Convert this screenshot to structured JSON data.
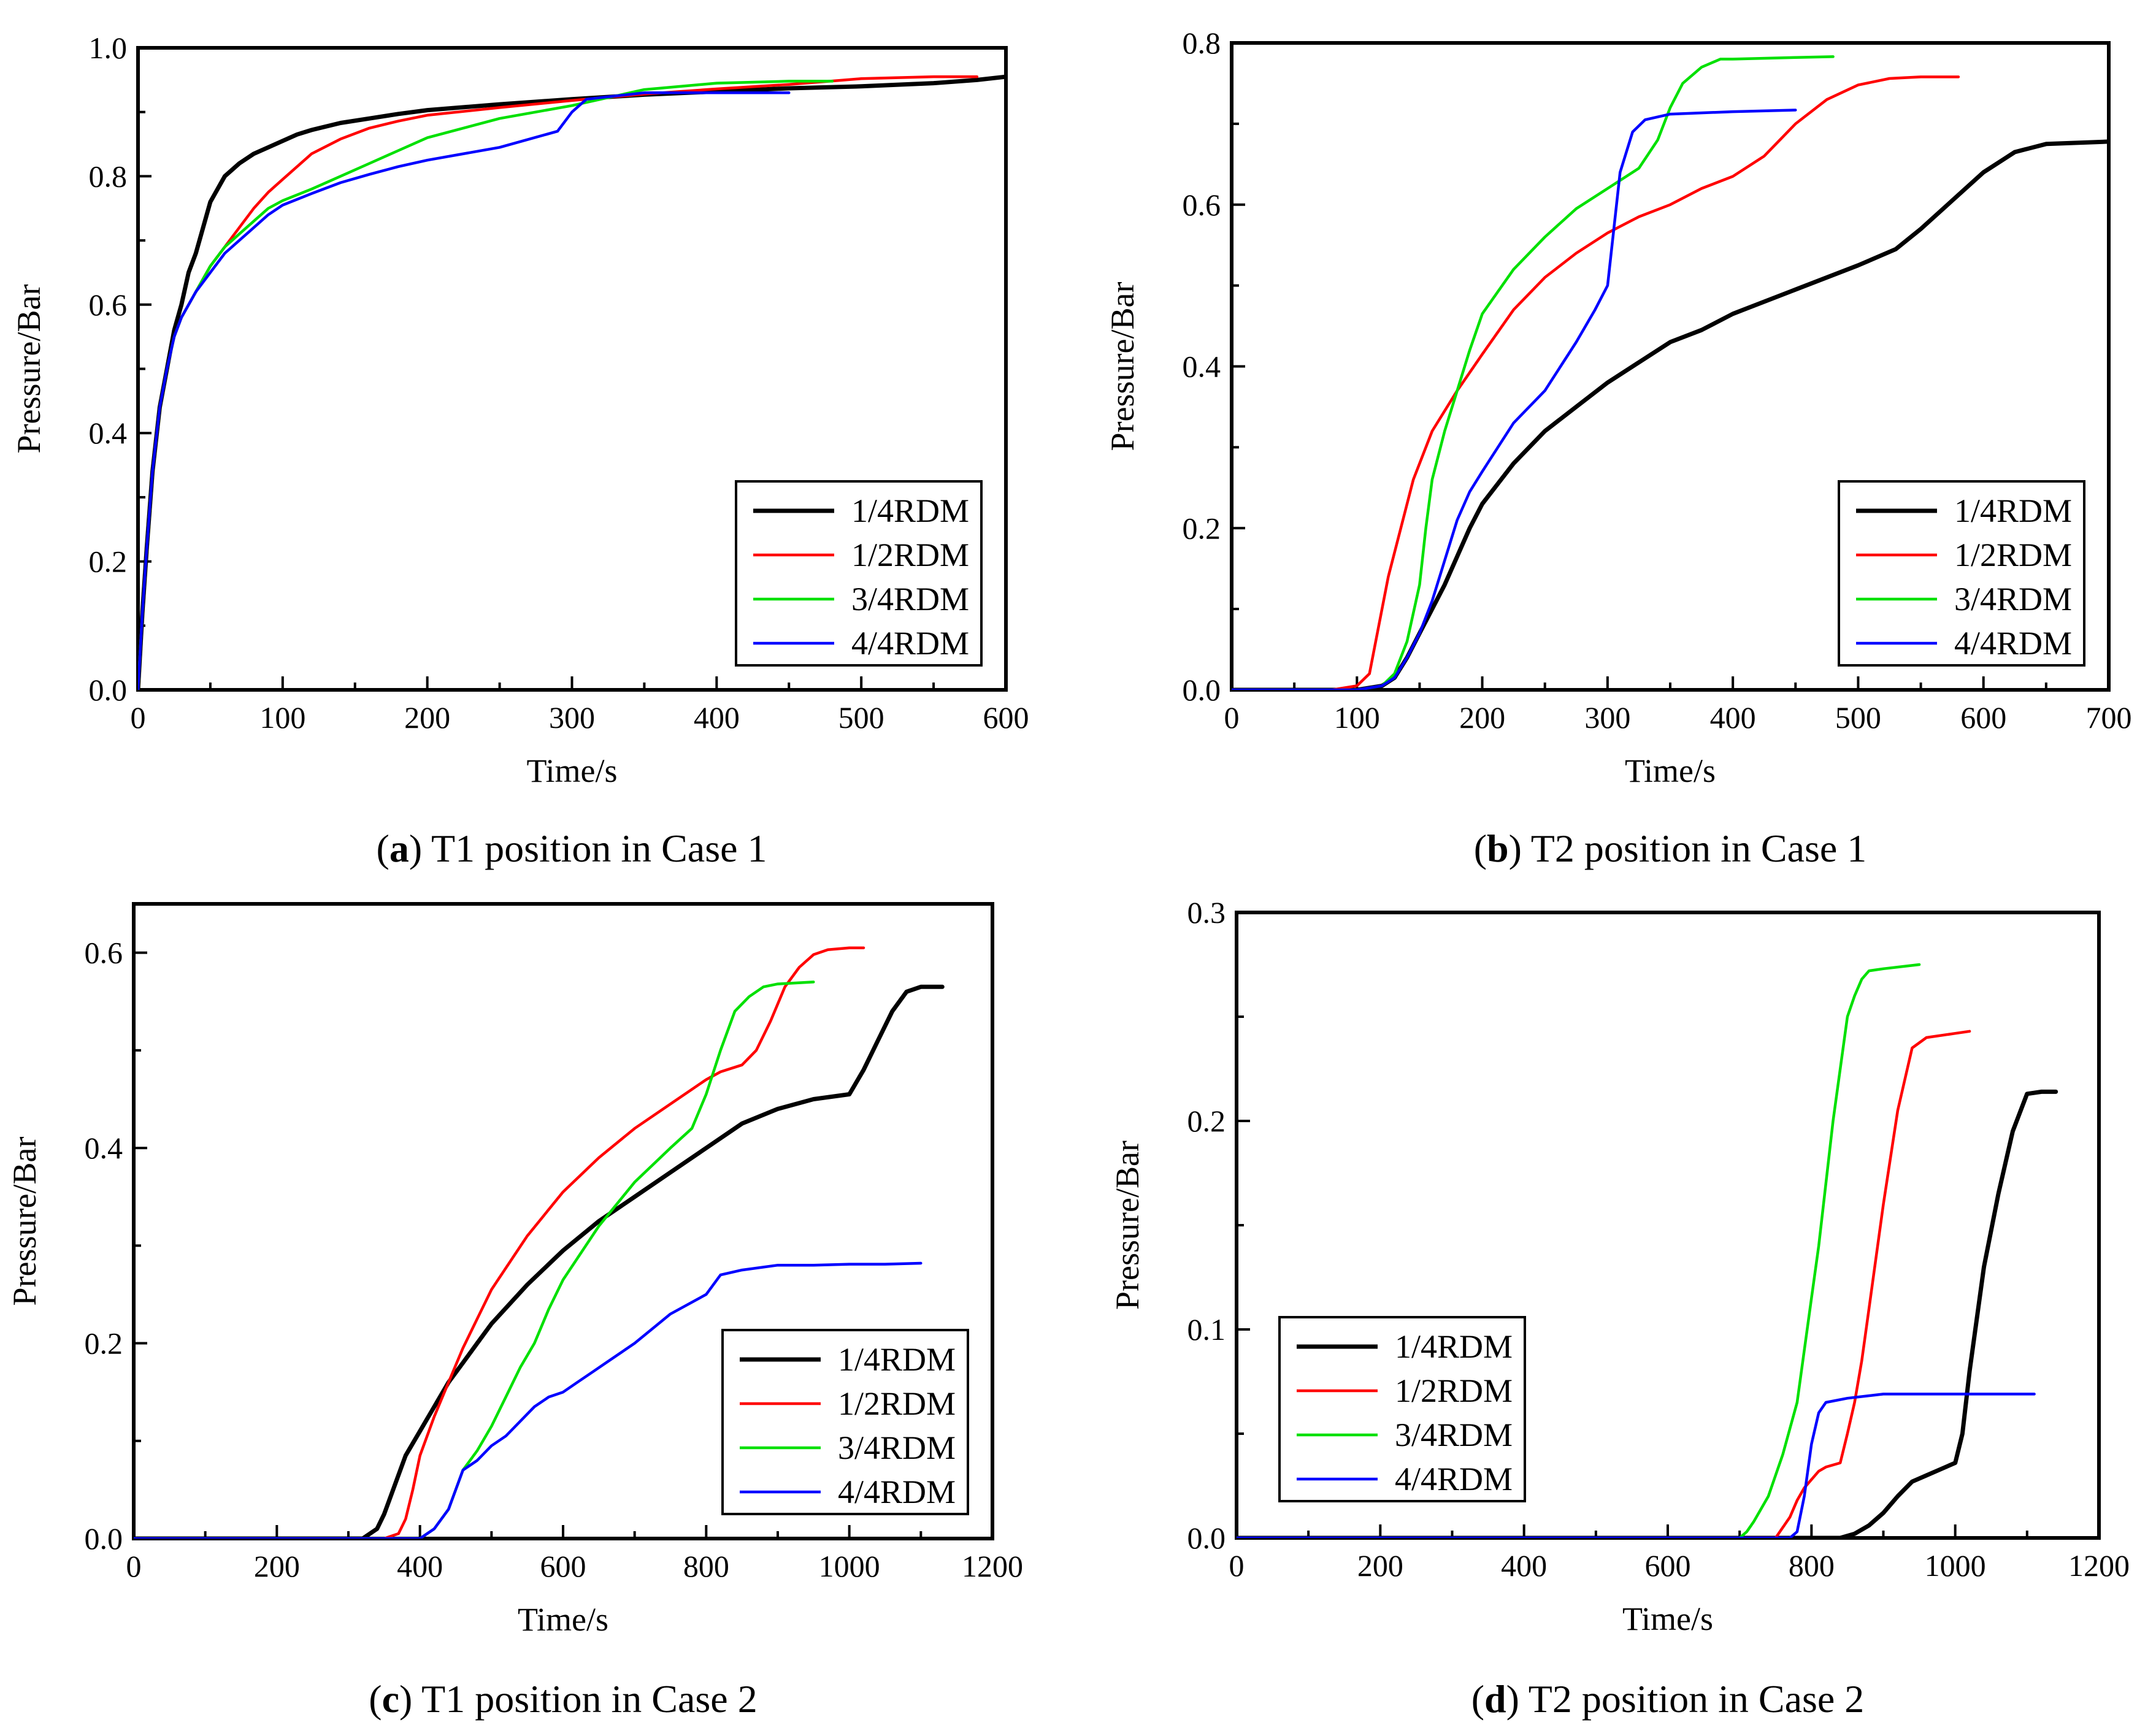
{
  "series_colors": {
    "1/4RDM": "#000000",
    "1/2RDM": "#ff0000",
    "3/4RDM": "#00e000",
    "4/4RDM": "#0000ff"
  },
  "chart_data": [
    {
      "id": "a",
      "type": "line",
      "caption_letter": "a",
      "caption_text": " T1 position in Case 1",
      "xlabel": "Time/s",
      "ylabel": "Pressure/Bar",
      "xlim": [
        0,
        600
      ],
      "ylim": [
        0,
        1.0
      ],
      "xticks": [
        0,
        100,
        200,
        300,
        400,
        500,
        600
      ],
      "xtick_labels": [
        "0",
        "100",
        "200",
        "300",
        "400",
        "500",
        "600"
      ],
      "yticks": [
        0,
        0.2,
        0.4,
        0.6,
        0.8,
        1.0
      ],
      "ytick_labels": [
        "0.0",
        "0.2",
        "0.4",
        "0.6",
        "0.8",
        "1.0"
      ],
      "legend_position": "bottom-right",
      "series": [
        {
          "name": "1/4RDM",
          "x": [
            0,
            3,
            6,
            10,
            15,
            20,
            25,
            30,
            35,
            40,
            45,
            50,
            55,
            60,
            70,
            80,
            90,
            100,
            110,
            120,
            140,
            160,
            180,
            200,
            250,
            300,
            350,
            400,
            450,
            500,
            550,
            580,
            600
          ],
          "y": [
            0,
            0.12,
            0.22,
            0.34,
            0.44,
            0.5,
            0.56,
            0.6,
            0.65,
            0.68,
            0.72,
            0.76,
            0.78,
            0.8,
            0.82,
            0.835,
            0.845,
            0.855,
            0.865,
            0.872,
            0.883,
            0.89,
            0.897,
            0.903,
            0.912,
            0.92,
            0.927,
            0.932,
            0.937,
            0.94,
            0.945,
            0.95,
            0.955
          ]
        },
        {
          "name": "1/2RDM",
          "x": [
            0,
            3,
            6,
            10,
            15,
            20,
            25,
            30,
            40,
            50,
            60,
            70,
            80,
            90,
            100,
            110,
            120,
            140,
            160,
            180,
            200,
            250,
            300,
            350,
            400,
            450,
            500,
            550,
            580
          ],
          "y": [
            0,
            0.12,
            0.22,
            0.34,
            0.44,
            0.5,
            0.55,
            0.58,
            0.62,
            0.66,
            0.69,
            0.72,
            0.75,
            0.775,
            0.795,
            0.815,
            0.835,
            0.858,
            0.875,
            0.886,
            0.895,
            0.907,
            0.918,
            0.928,
            0.936,
            0.943,
            0.952,
            0.955,
            0.955
          ]
        },
        {
          "name": "3/4RDM",
          "x": [
            0,
            3,
            6,
            10,
            15,
            20,
            25,
            30,
            40,
            50,
            60,
            70,
            80,
            90,
            100,
            120,
            140,
            160,
            180,
            200,
            250,
            300,
            350,
            400,
            450,
            480
          ],
          "y": [
            0,
            0.12,
            0.22,
            0.34,
            0.44,
            0.5,
            0.55,
            0.58,
            0.62,
            0.66,
            0.69,
            0.71,
            0.73,
            0.75,
            0.762,
            0.78,
            0.8,
            0.82,
            0.84,
            0.86,
            0.89,
            0.91,
            0.935,
            0.945,
            0.948,
            0.948
          ]
        },
        {
          "name": "4/4RDM",
          "x": [
            0,
            3,
            6,
            10,
            15,
            20,
            25,
            30,
            40,
            50,
            60,
            70,
            80,
            90,
            100,
            120,
            140,
            160,
            180,
            200,
            250,
            290,
            300,
            310,
            350,
            400,
            450
          ],
          "y": [
            0,
            0.12,
            0.22,
            0.34,
            0.44,
            0.5,
            0.55,
            0.58,
            0.62,
            0.65,
            0.68,
            0.7,
            0.72,
            0.74,
            0.755,
            0.773,
            0.79,
            0.803,
            0.815,
            0.825,
            0.845,
            0.87,
            0.9,
            0.92,
            0.93,
            0.93,
            0.93
          ]
        }
      ]
    },
    {
      "id": "b",
      "type": "line",
      "caption_letter": "b",
      "caption_text": " T2 position in Case 1",
      "xlabel": "Time/s",
      "ylabel": "Pressure/Bar",
      "xlim": [
        0,
        700
      ],
      "ylim": [
        0,
        0.8
      ],
      "xticks": [
        0,
        100,
        200,
        300,
        400,
        500,
        600,
        700
      ],
      "xtick_labels": [
        "0",
        "100",
        "200",
        "300",
        "400",
        "500",
        "600",
        "700"
      ],
      "yticks": [
        0,
        0.2,
        0.4,
        0.6,
        0.8
      ],
      "ytick_labels": [
        "0.0",
        "0.2",
        "0.4",
        "0.6",
        "0.8"
      ],
      "legend_position": "bottom-right",
      "series": [
        {
          "name": "1/4RDM",
          "x": [
            0,
            100,
            120,
            130,
            140,
            150,
            160,
            170,
            180,
            190,
            200,
            225,
            250,
            275,
            300,
            325,
            350,
            375,
            400,
            450,
            500,
            530,
            550,
            575,
            600,
            625,
            650,
            700
          ],
          "y": [
            0,
            0,
            0.005,
            0.015,
            0.04,
            0.07,
            0.1,
            0.13,
            0.165,
            0.2,
            0.23,
            0.28,
            0.32,
            0.35,
            0.38,
            0.405,
            0.43,
            0.445,
            0.465,
            0.495,
            0.525,
            0.545,
            0.57,
            0.605,
            0.64,
            0.665,
            0.675,
            0.678
          ]
        },
        {
          "name": "1/2RDM",
          "x": [
            0,
            80,
            100,
            110,
            115,
            125,
            135,
            145,
            160,
            180,
            200,
            225,
            250,
            275,
            300,
            325,
            350,
            375,
            400,
            425,
            450,
            475,
            500,
            525,
            550,
            580
          ],
          "y": [
            0,
            0,
            0.005,
            0.02,
            0.06,
            0.14,
            0.2,
            0.26,
            0.32,
            0.37,
            0.415,
            0.47,
            0.51,
            0.54,
            0.565,
            0.585,
            0.6,
            0.62,
            0.635,
            0.66,
            0.7,
            0.73,
            0.748,
            0.756,
            0.758,
            0.758
          ]
        },
        {
          "name": "3/4RDM",
          "x": [
            0,
            100,
            120,
            130,
            140,
            150,
            155,
            160,
            170,
            180,
            190,
            200,
            225,
            250,
            275,
            300,
            325,
            340,
            350,
            360,
            375,
            390,
            400,
            450,
            480
          ],
          "y": [
            0,
            0,
            0.005,
            0.02,
            0.06,
            0.13,
            0.2,
            0.26,
            0.32,
            0.37,
            0.42,
            0.465,
            0.52,
            0.56,
            0.595,
            0.62,
            0.645,
            0.68,
            0.72,
            0.75,
            0.77,
            0.78,
            0.78,
            0.782,
            0.783
          ]
        },
        {
          "name": "4/4RDM",
          "x": [
            0,
            100,
            120,
            130,
            140,
            150,
            160,
            170,
            180,
            190,
            200,
            225,
            250,
            275,
            290,
            300,
            310,
            320,
            330,
            350,
            400,
            450
          ],
          "y": [
            0,
            0,
            0.005,
            0.015,
            0.04,
            0.07,
            0.11,
            0.16,
            0.21,
            0.245,
            0.27,
            0.33,
            0.37,
            0.43,
            0.47,
            0.5,
            0.64,
            0.69,
            0.705,
            0.712,
            0.715,
            0.717
          ]
        }
      ]
    },
    {
      "id": "c",
      "type": "line",
      "caption_letter": "c",
      "caption_text": " T1 position in Case 2",
      "xlabel": "Time/s",
      "ylabel": "Pressure/Bar",
      "xlim": [
        0,
        1200
      ],
      "ylim": [
        0,
        0.65
      ],
      "xticks": [
        0,
        200,
        400,
        600,
        800,
        1000,
        1200
      ],
      "xtick_labels": [
        "0",
        "200",
        "400",
        "600",
        "800",
        "1000",
        "1200"
      ],
      "yticks": [
        0,
        0.2,
        0.4,
        0.6
      ],
      "ytick_labels": [
        "0.0",
        "0.2",
        "0.4",
        "0.6"
      ],
      "legend_position": "bottom-right",
      "series": [
        {
          "name": "1/4RDM",
          "x": [
            0,
            320,
            340,
            350,
            360,
            380,
            400,
            420,
            440,
            460,
            480,
            500,
            550,
            600,
            650,
            700,
            750,
            800,
            850,
            900,
            950,
            1000,
            1020,
            1040,
            1060,
            1080,
            1100,
            1130
          ],
          "y": [
            0,
            0,
            0.01,
            0.025,
            0.045,
            0.085,
            0.11,
            0.135,
            0.16,
            0.18,
            0.2,
            0.22,
            0.26,
            0.295,
            0.325,
            0.35,
            0.375,
            0.4,
            0.425,
            0.44,
            0.45,
            0.455,
            0.48,
            0.51,
            0.54,
            0.56,
            0.565,
            0.565
          ]
        },
        {
          "name": "1/2RDM",
          "x": [
            0,
            350,
            370,
            380,
            390,
            400,
            420,
            440,
            460,
            480,
            500,
            550,
            600,
            650,
            700,
            750,
            800,
            820,
            850,
            870,
            890,
            910,
            930,
            950,
            970,
            1000,
            1020
          ],
          "y": [
            0,
            0,
            0.005,
            0.02,
            0.05,
            0.085,
            0.125,
            0.16,
            0.195,
            0.225,
            0.255,
            0.31,
            0.355,
            0.39,
            0.42,
            0.445,
            0.47,
            0.478,
            0.485,
            0.5,
            0.53,
            0.565,
            0.585,
            0.598,
            0.603,
            0.605,
            0.605
          ]
        },
        {
          "name": "3/4RDM",
          "x": [
            0,
            400,
            420,
            440,
            450,
            460,
            480,
            500,
            520,
            540,
            560,
            580,
            600,
            650,
            700,
            750,
            780,
            800,
            820,
            840,
            860,
            880,
            900,
            950
          ],
          "y": [
            0,
            0,
            0.01,
            0.03,
            0.05,
            0.07,
            0.09,
            0.115,
            0.145,
            0.175,
            0.2,
            0.235,
            0.265,
            0.32,
            0.365,
            0.4,
            0.42,
            0.455,
            0.5,
            0.54,
            0.555,
            0.565,
            0.568,
            0.57
          ]
        },
        {
          "name": "4/4RDM",
          "x": [
            0,
            400,
            420,
            440,
            450,
            460,
            480,
            500,
            520,
            540,
            560,
            580,
            600,
            620,
            640,
            660,
            700,
            750,
            800,
            820,
            850,
            900,
            950,
            1000,
            1050,
            1100
          ],
          "y": [
            0,
            0,
            0.01,
            0.03,
            0.05,
            0.07,
            0.08,
            0.095,
            0.105,
            0.12,
            0.135,
            0.145,
            0.15,
            0.16,
            0.17,
            0.18,
            0.2,
            0.23,
            0.25,
            0.27,
            0.275,
            0.28,
            0.28,
            0.281,
            0.281,
            0.282
          ]
        }
      ]
    },
    {
      "id": "d",
      "type": "line",
      "caption_letter": "d",
      "caption_text": " T2 position in Case 2",
      "xlabel": "Time/s",
      "ylabel": "Pressure/Bar",
      "xlim": [
        0,
        1200
      ],
      "ylim": [
        0,
        0.3
      ],
      "xticks": [
        0,
        200,
        400,
        600,
        800,
        1000,
        1200
      ],
      "xtick_labels": [
        "0",
        "200",
        "400",
        "600",
        "800",
        "1000",
        "1200"
      ],
      "yticks": [
        0,
        0.1,
        0.2,
        0.3
      ],
      "ytick_labels": [
        "0.0",
        "0.1",
        "0.2",
        "0.3"
      ],
      "legend_position": "bottom-left",
      "series": [
        {
          "name": "1/4RDM",
          "x": [
            0,
            840,
            860,
            880,
            900,
            920,
            940,
            960,
            980,
            1000,
            1010,
            1020,
            1040,
            1060,
            1080,
            1100,
            1120,
            1140
          ],
          "y": [
            0,
            0,
            0.002,
            0.006,
            0.012,
            0.02,
            0.027,
            0.03,
            0.033,
            0.036,
            0.05,
            0.08,
            0.13,
            0.165,
            0.195,
            0.213,
            0.214,
            0.214
          ]
        },
        {
          "name": "1/2RDM",
          "x": [
            0,
            750,
            770,
            780,
            790,
            800,
            810,
            820,
            830,
            840,
            850,
            860,
            870,
            880,
            890,
            900,
            920,
            940,
            960,
            1000,
            1020
          ],
          "y": [
            0,
            0,
            0.01,
            0.018,
            0.024,
            0.028,
            0.032,
            0.034,
            0.035,
            0.036,
            0.05,
            0.065,
            0.085,
            0.11,
            0.135,
            0.16,
            0.205,
            0.235,
            0.24,
            0.242,
            0.243
          ]
        },
        {
          "name": "3/4RDM",
          "x": [
            0,
            700,
            710,
            720,
            740,
            760,
            780,
            790,
            800,
            810,
            820,
            830,
            840,
            850,
            860,
            870,
            880,
            900,
            950
          ],
          "y": [
            0,
            0,
            0.003,
            0.008,
            0.02,
            0.04,
            0.065,
            0.09,
            0.115,
            0.14,
            0.17,
            0.2,
            0.225,
            0.25,
            0.26,
            0.268,
            0.272,
            0.273,
            0.275
          ]
        },
        {
          "name": "4/4RDM",
          "x": [
            0,
            770,
            780,
            790,
            800,
            810,
            820,
            850,
            900,
            950,
            1000,
            1050,
            1100,
            1110
          ],
          "y": [
            0,
            0,
            0.003,
            0.02,
            0.045,
            0.06,
            0.065,
            0.067,
            0.069,
            0.069,
            0.069,
            0.069,
            0.069,
            0.069
          ]
        }
      ]
    }
  ]
}
